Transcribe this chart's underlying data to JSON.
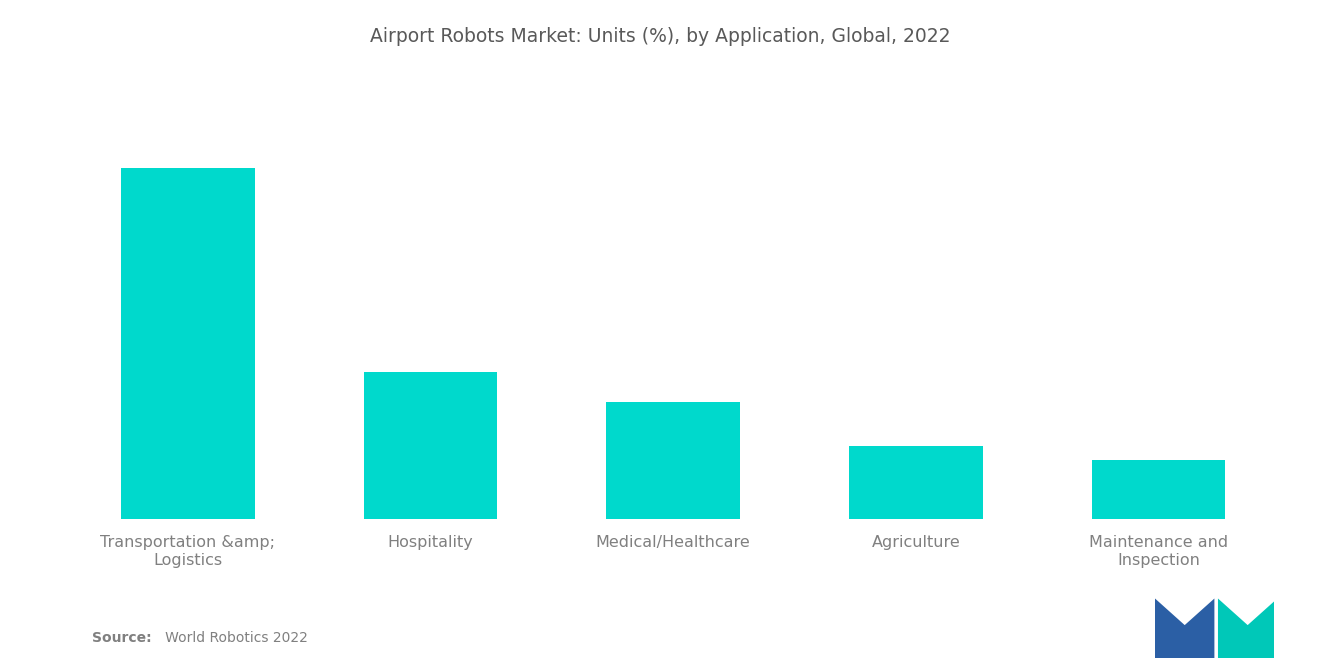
{
  "title": "Airport Robots Market: Units (%), by Application, Global, 2022",
  "categories": [
    "Transportation &amp;\nLogistics",
    "Hospitality",
    "Medical/Healthcare",
    "Agriculture",
    "Maintenance and\nInspection"
  ],
  "values": [
    48,
    20,
    16,
    10,
    8
  ],
  "bar_color": "#00D9CC",
  "background_color": "#ffffff",
  "title_color": "#595959",
  "label_color": "#808080",
  "title_fontsize": 13.5,
  "label_fontsize": 11.5,
  "source_bold": "Source:",
  "source_rest": "   World Robotics 2022",
  "ylim": [
    0,
    60
  ],
  "bar_width": 0.55,
  "logo_blue": "#2B5FA5",
  "logo_teal": "#00C8B8"
}
